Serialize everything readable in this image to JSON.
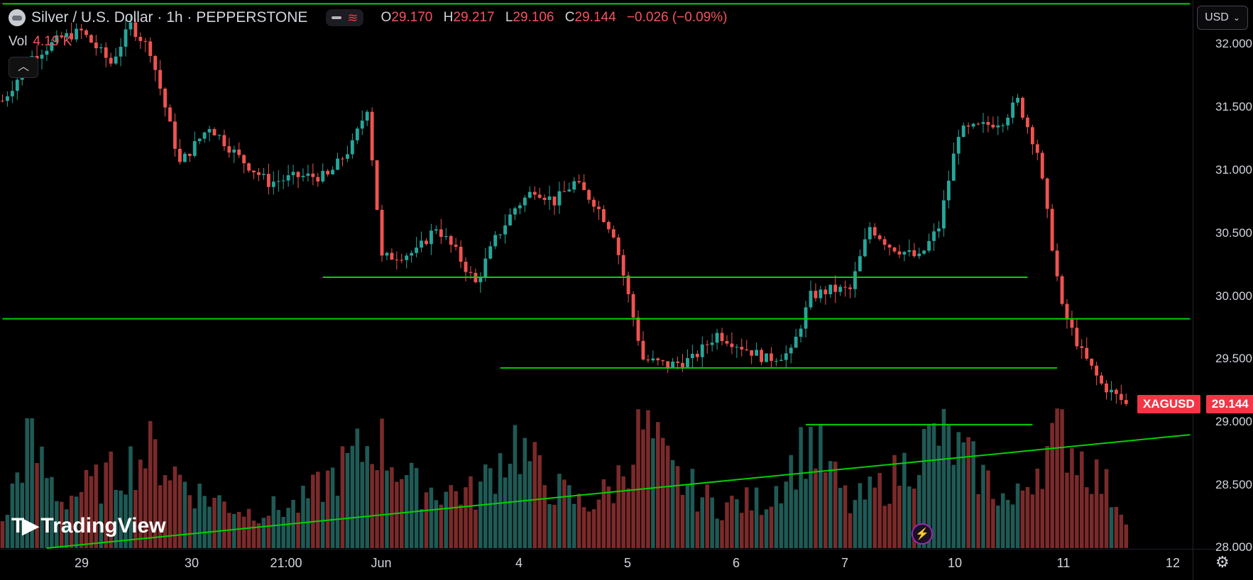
{
  "header": {
    "title": "Silver / U.S. Dollar · 1h · PEPPERSTONE",
    "ohlc": [
      {
        "k": "O",
        "v": "29.170"
      },
      {
        "k": "H",
        "v": "29.217"
      },
      {
        "k": "L",
        "v": "29.106"
      },
      {
        "k": "C",
        "v": "29.144"
      }
    ],
    "change": "−0.026 (−0.09%)"
  },
  "volume": {
    "label": "Vol",
    "value": "4.19 K"
  },
  "currency": "USD",
  "price_tag": {
    "symbol": "XAGUSD",
    "price": "29.144"
  },
  "logo": {
    "text": "TradingView",
    "mark": "TV"
  },
  "colors": {
    "up": "#26a69a",
    "down": "#ef5350",
    "vol_up": "#1f5a55",
    "vol_down": "#7a2a2a",
    "lines": "#00d200",
    "bg": "#000000"
  },
  "chart_data": {
    "type": "candlestick",
    "symbol": "XAGUSD",
    "interval": "1h",
    "ylim": [
      28.0,
      32.35
    ],
    "y_ticks": [
      "32.000",
      "31.500",
      "31.000",
      "30.500",
      "30.000",
      "29.500",
      "29.000",
      "28.500",
      "28.000"
    ],
    "x_ticks": [
      "29",
      "30",
      "21:00",
      "Jun",
      "4",
      "5",
      "6",
      "7",
      "10",
      "11",
      "12"
    ],
    "last_price": 29.144,
    "anchors": [
      [
        0,
        31.55
      ],
      [
        6,
        31.9
      ],
      [
        12,
        32.05
      ],
      [
        16,
        32.1
      ],
      [
        22,
        31.85
      ],
      [
        26,
        32.15
      ],
      [
        30,
        31.95
      ],
      [
        36,
        31.05
      ],
      [
        42,
        31.35
      ],
      [
        48,
        31.1
      ],
      [
        54,
        30.9
      ],
      [
        60,
        30.95
      ],
      [
        66,
        30.95
      ],
      [
        71,
        31.2
      ],
      [
        74,
        31.5
      ],
      [
        77,
        30.3
      ],
      [
        84,
        30.35
      ],
      [
        88,
        30.55
      ],
      [
        92,
        30.35
      ],
      [
        96,
        30.1
      ],
      [
        100,
        30.45
      ],
      [
        104,
        30.7
      ],
      [
        108,
        30.85
      ],
      [
        112,
        30.75
      ],
      [
        116,
        30.9
      ],
      [
        120,
        30.75
      ],
      [
        124,
        30.5
      ],
      [
        130,
        29.5
      ],
      [
        135,
        29.45
      ],
      [
        140,
        29.5
      ],
      [
        145,
        29.7
      ],
      [
        150,
        29.6
      ],
      [
        155,
        29.5
      ],
      [
        160,
        29.55
      ],
      [
        164,
        30.0
      ],
      [
        168,
        30.05
      ],
      [
        172,
        30.05
      ],
      [
        176,
        30.55
      ],
      [
        180,
        30.4
      ],
      [
        186,
        30.3
      ],
      [
        190,
        30.55
      ],
      [
        194,
        31.3
      ],
      [
        199,
        31.35
      ],
      [
        203,
        31.4
      ],
      [
        206,
        31.55
      ],
      [
        210,
        31.15
      ],
      [
        215,
        29.9
      ],
      [
        219,
        29.55
      ],
      [
        223,
        29.3
      ],
      [
        228,
        29.144
      ]
    ],
    "volume_anchors": [
      [
        0,
        0.18
      ],
      [
        5,
        0.9
      ],
      [
        12,
        0.4
      ],
      [
        20,
        0.55
      ],
      [
        30,
        0.8
      ],
      [
        40,
        0.45
      ],
      [
        50,
        0.3
      ],
      [
        60,
        0.35
      ],
      [
        70,
        0.7
      ],
      [
        76,
        0.9
      ],
      [
        84,
        0.5
      ],
      [
        96,
        0.45
      ],
      [
        104,
        0.9
      ],
      [
        110,
        0.55
      ],
      [
        118,
        0.35
      ],
      [
        124,
        0.5
      ],
      [
        130,
        1.0
      ],
      [
        136,
        0.6
      ],
      [
        145,
        0.35
      ],
      [
        155,
        0.4
      ],
      [
        164,
        0.9
      ],
      [
        172,
        0.35
      ],
      [
        180,
        0.55
      ],
      [
        190,
        0.95
      ],
      [
        200,
        0.55
      ],
      [
        205,
        0.35
      ],
      [
        210,
        0.7
      ],
      [
        215,
        0.95
      ],
      [
        220,
        0.7
      ],
      [
        228,
        0.3
      ]
    ],
    "support_resistance": [
      {
        "price": 32.32,
        "from_bar": 0,
        "to_bar": 241
      },
      {
        "price": 30.15,
        "from_bar": 65,
        "to_bar": 208
      },
      {
        "price": 29.82,
        "from_bar": 0,
        "to_bar": 241
      },
      {
        "price": 29.43,
        "from_bar": 101,
        "to_bar": 214
      },
      {
        "price": 28.98,
        "from_bar": 163,
        "to_bar": 209
      }
    ],
    "trendline": {
      "from": [
        9,
        28.0
      ],
      "to": [
        241,
        28.9
      ]
    }
  }
}
